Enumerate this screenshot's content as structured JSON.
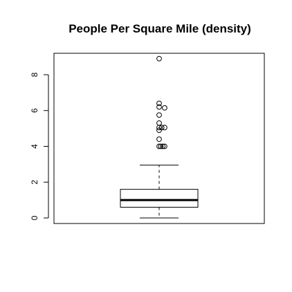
{
  "chart_data": {
    "type": "boxplot",
    "title": "People Per Square Mile (density)",
    "xlabel": "",
    "ylabel": "",
    "ylim": [
      -0.3,
      9.3
    ],
    "yticks": [
      0,
      2,
      4,
      6,
      8
    ],
    "ytick_labels": [
      "0",
      "2",
      "4",
      "6",
      "8"
    ],
    "grid": false,
    "box": {
      "whisker_low": 0.0,
      "q1": 0.6,
      "median": 1.0,
      "q3": 1.6,
      "whisker_high": 2.95
    },
    "outliers": [
      {
        "y": 4.0,
        "x": 0.0
      },
      {
        "y": 4.0,
        "x": 1.0
      },
      {
        "y": 4.0,
        "x": 2.2
      },
      {
        "y": 4.0,
        "x": 3.3
      },
      {
        "y": 4.4,
        "x": 0.0
      },
      {
        "y": 4.9,
        "x": 0.0
      },
      {
        "y": 5.05,
        "x": 0.0
      },
      {
        "y": 5.05,
        "x": 1.5
      },
      {
        "y": 5.05,
        "x": 3.3
      },
      {
        "y": 5.3,
        "x": 0.0
      },
      {
        "y": 5.75,
        "x": 0.0
      },
      {
        "y": 6.15,
        "x": 3.3
      },
      {
        "y": 6.2,
        "x": 0.0
      },
      {
        "y": 6.4,
        "x": 0.0
      },
      {
        "y": 8.9,
        "x": 0.0
      }
    ]
  }
}
